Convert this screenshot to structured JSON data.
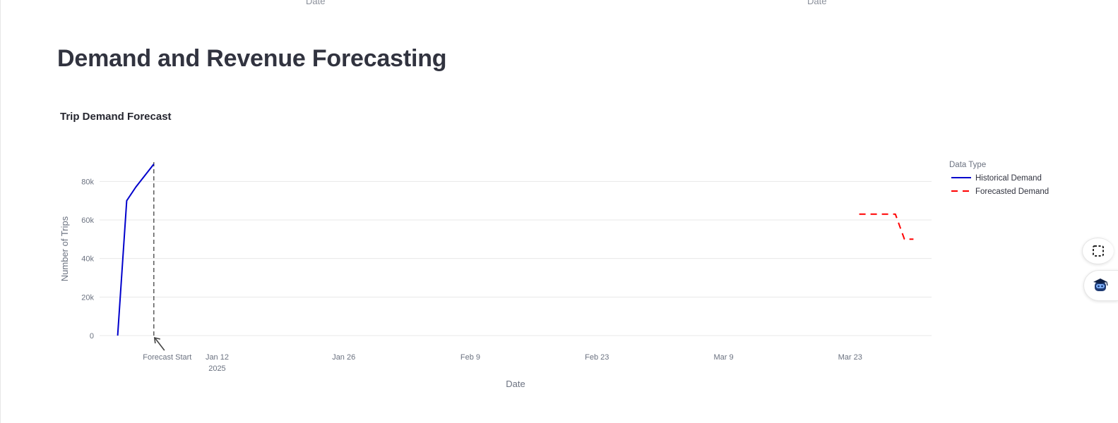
{
  "previous_section": {
    "axis_labels": [
      "Date",
      "Date"
    ]
  },
  "page_title": "Demand and Revenue Forecasting",
  "chart_title": "Trip Demand Forecast",
  "chart_data": {
    "type": "line",
    "title": "Trip Demand Forecast",
    "xlabel": "Date",
    "ylabel": "Number of Trips",
    "x_range": [
      "2024-12-30",
      "2025-04-01"
    ],
    "ylim": [
      0,
      90000
    ],
    "y_ticks": [
      0,
      20000,
      40000,
      60000,
      80000
    ],
    "y_tick_labels": [
      "0",
      "20k",
      "40k",
      "60k",
      "80k"
    ],
    "x_ticks": [
      "2025-01-12",
      "2025-01-26",
      "2025-02-09",
      "2025-02-23",
      "2025-03-09",
      "2025-03-23"
    ],
    "x_tick_labels": [
      "Jan 12",
      "Jan 26",
      "Feb 9",
      "Feb 23",
      "Mar 9",
      "Mar 23"
    ],
    "x_tick_year": "2025",
    "grid": true,
    "legend_title": "Data Type",
    "legend_position": "right",
    "series": [
      {
        "name": "Historical Demand",
        "style": "solid",
        "color": "#0000cc",
        "points": [
          {
            "x": "2025-01-01",
            "y": 0
          },
          {
            "x": "2025-01-02",
            "y": 70000
          },
          {
            "x": "2025-01-03",
            "y": 77000
          },
          {
            "x": "2025-01-04",
            "y": 83000
          },
          {
            "x": "2025-01-05",
            "y": 89000
          }
        ]
      },
      {
        "name": "Forecasted Demand",
        "style": "dash",
        "color": "#ff0000",
        "points": [
          {
            "x": "2025-03-24",
            "y": 63000
          },
          {
            "x": "2025-03-25",
            "y": 63000
          },
          {
            "x": "2025-03-26",
            "y": 63000
          },
          {
            "x": "2025-03-27",
            "y": 63000
          },
          {
            "x": "2025-03-28",
            "y": 63000
          },
          {
            "x": "2025-03-29",
            "y": 50000
          },
          {
            "x": "2025-03-30",
            "y": 50000
          }
        ]
      }
    ],
    "annotation": {
      "text": "Forecast Start",
      "x": "2025-01-05",
      "line_style": "dash",
      "line_color": "#333333"
    }
  },
  "side_tools": [
    {
      "icon": "screenshot-select-icon"
    },
    {
      "icon": "assistant-bot-icon"
    }
  ]
}
